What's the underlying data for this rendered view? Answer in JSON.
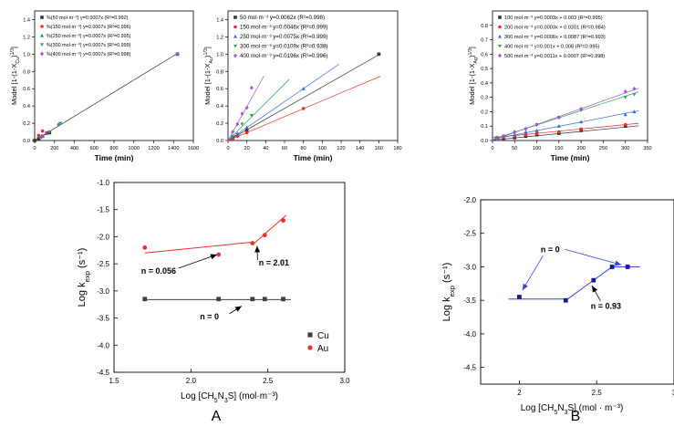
{
  "panel_labels": {
    "A": "A",
    "B": "B"
  },
  "chart_data": [
    {
      "id": "cu_kinetics",
      "type": "scatter",
      "ylabel": "Model [1-(1-X",
      "ylabel_sub": "Cu",
      "ylabel_tail": ")",
      "ylabel_sup": "1/3",
      "ylabel_end": "]",
      "xlabel": "Time (min)",
      "xlim": [
        0,
        1600
      ],
      "ylim": [
        0,
        1.5
      ],
      "xticks": [
        0,
        200,
        400,
        600,
        800,
        1000,
        1200,
        1400,
        1600
      ],
      "yticks": [
        0.0,
        0.2,
        0.4,
        0.6,
        0.8,
        1.0,
        1.2,
        1.4
      ],
      "legend_position": "top-left",
      "series": [
        {
          "name": "%(50 mol·m⁻³) y=0.0007x (R²=0.992)",
          "color": "#333333",
          "marker": "square",
          "slope": 0.0007,
          "intercept": 0,
          "line_xmax": 1440,
          "points": [
            [
              0,
              0
            ],
            [
              40,
              0.02
            ],
            [
              80,
              0.05
            ],
            [
              150,
              0.09
            ],
            [
              1440,
              1.0
            ]
          ]
        },
        {
          "name": "%(150 mol·m⁻³) y=0.0007x (R²=0.996)",
          "color": "#e8302c",
          "marker": "circle",
          "slope": 0.0007,
          "intercept": 0,
          "line_xmax": 0,
          "points": [
            [
              40,
              0.06
            ],
            [
              80,
              0.11
            ],
            [
              120,
              0.09
            ]
          ]
        },
        {
          "name": "%(250 mol·m⁻³) y=0.0007x (R²=0.995)",
          "color": "#3a67d8",
          "marker": "triangle-up",
          "slope": 0.0007,
          "intercept": 0,
          "line_xmax": 0,
          "points": [
            [
              60,
              0.04
            ],
            [
              120,
              0.08
            ],
            [
              240,
              0.19
            ]
          ]
        },
        {
          "name": "%(300 mol·m⁻³) y=0.0007x (R²=0.999)",
          "color": "#2ea04f",
          "marker": "triangle-down",
          "slope": 0.0007,
          "intercept": 0,
          "line_xmax": 0,
          "points": [
            [
              60,
              0.03
            ],
            [
              150,
              0.1
            ],
            [
              260,
              0.2
            ]
          ]
        },
        {
          "name": "%(400 mol·m⁻³) y=0.0007x (R²=0.998)",
          "color": "#9b59d0",
          "marker": "diamond",
          "slope": 0.0007,
          "intercept": 0,
          "line_xmax": 0,
          "points": [
            [
              80,
              0.05
            ],
            [
              1440,
              1.0
            ]
          ]
        }
      ]
    },
    {
      "id": "au_kinetics",
      "type": "scatter",
      "ylabel": "Model [1-(1-X",
      "ylabel_sub": "Au",
      "ylabel_tail": ")",
      "ylabel_sup": "1/3",
      "ylabel_end": "]",
      "xlabel": "Time (min)",
      "xlim": [
        0,
        180
      ],
      "ylim": [
        0,
        1.5
      ],
      "xticks": [
        0,
        20,
        40,
        60,
        80,
        100,
        120,
        140,
        160,
        180
      ],
      "yticks": [
        0.0,
        0.2,
        0.4,
        0.6,
        0.8,
        1.0,
        1.2,
        1.4
      ],
      "legend_position": "top-left",
      "series": [
        {
          "name": "50 mol·m⁻³ y=0.0062x (R²=0.998)",
          "color": "#333333",
          "marker": "square",
          "slope": 0.0062,
          "intercept": 0,
          "line_xmax": 162,
          "points": [
            [
              5,
              0.03
            ],
            [
              10,
              0.06
            ],
            [
              20,
              0.12
            ],
            [
              160,
              1.0
            ]
          ]
        },
        {
          "name": "150 mol·m⁻³ y=0.0046x (R²=0.999)",
          "color": "#e8302c",
          "marker": "circle",
          "slope": 0.0046,
          "intercept": 0,
          "line_xmax": 162,
          "points": [
            [
              5,
              0.02
            ],
            [
              10,
              0.05
            ],
            [
              20,
              0.09
            ],
            [
              80,
              0.37
            ]
          ]
        },
        {
          "name": "250 mol·m⁻³ y=0.0075x (R²=0.999)",
          "color": "#3a67d8",
          "marker": "triangle-up",
          "slope": 0.0075,
          "intercept": 0,
          "line_xmax": 118,
          "points": [
            [
              5,
              0.04
            ],
            [
              10,
              0.08
            ],
            [
              20,
              0.15
            ],
            [
              80,
              0.6
            ]
          ]
        },
        {
          "name": "300 mol·m⁻³ y=0.0109x (R²=0.938)",
          "color": "#2ea04f",
          "marker": "triangle-down",
          "slope": 0.0109,
          "intercept": 0,
          "line_xmax": 65,
          "points": [
            [
              5,
              0.05
            ],
            [
              15,
              0.19
            ],
            [
              25,
              0.29
            ]
          ]
        },
        {
          "name": "400 mol·m⁻³ y=0.0196x (R²=0.996)",
          "color": "#9b59d0",
          "marker": "diamond",
          "slope": 0.0196,
          "intercept": 0,
          "line_xmax": 38,
          "points": [
            [
              5,
              0.1
            ],
            [
              10,
              0.19
            ],
            [
              15,
              0.31
            ],
            [
              20,
              0.38
            ],
            [
              25,
              0.61
            ]
          ]
        }
      ]
    },
    {
      "id": "ag_kinetics",
      "type": "scatter",
      "ylabel": "Model [1-(1-X",
      "ylabel_sub": "Ag",
      "ylabel_tail": ")",
      "ylabel_sup": "1/3",
      "ylabel_end": "]",
      "xlabel": "Time (min)",
      "xlim": [
        0,
        350
      ],
      "ylim": [
        0,
        0.9
      ],
      "xticks": [
        0,
        50,
        100,
        150,
        200,
        250,
        300,
        350
      ],
      "yticks": [
        0.0,
        0.1,
        0.2,
        0.3,
        0.4,
        0.5,
        0.6,
        0.7,
        0.8
      ],
      "legend_position": "top-left",
      "series": [
        {
          "name": "100 mol·m⁻³ y=0.0003x + 0.003 (R²=0.995)",
          "color": "#333333",
          "marker": "square",
          "slope": 0.0003,
          "intercept": 0.003,
          "line_xmax": 330,
          "points": [
            [
              10,
              0.01
            ],
            [
              25,
              0.01
            ],
            [
              50,
              0.02
            ],
            [
              75,
              0.03
            ],
            [
              100,
              0.04
            ],
            [
              150,
              0.05
            ],
            [
              200,
              0.07
            ],
            [
              300,
              0.1
            ]
          ]
        },
        {
          "name": "200 mol·m⁻³ y=0.0003x + 0.0201 (R²=0.984)",
          "color": "#e8302c",
          "marker": "circle",
          "slope": 0.0003,
          "intercept": 0.0201,
          "line_xmax": 330,
          "points": [
            [
              10,
              0.02
            ],
            [
              25,
              0.02
            ],
            [
              50,
              0.03
            ],
            [
              75,
              0.04
            ],
            [
              100,
              0.05
            ],
            [
              150,
              0.06
            ],
            [
              200,
              0.08
            ],
            [
              300,
              0.11
            ]
          ]
        },
        {
          "name": "300 mol·m⁻³ y=0.0006x + 0.0087 (R²=0.993)",
          "color": "#3a67d8",
          "marker": "triangle-up",
          "slope": 0.0006,
          "intercept": 0.0087,
          "line_xmax": 330,
          "points": [
            [
              10,
              0.02
            ],
            [
              25,
              0.03
            ],
            [
              50,
              0.04
            ],
            [
              75,
              0.06
            ],
            [
              100,
              0.07
            ],
            [
              150,
              0.1
            ],
            [
              200,
              0.13
            ],
            [
              300,
              0.18
            ],
            [
              320,
              0.2
            ]
          ]
        },
        {
          "name": "400 mol·m⁻³ y=0.001x + 0.008 (R²=0.995)",
          "color": "#2ea04f",
          "marker": "triangle-down",
          "slope": 0.001,
          "intercept": 0.008,
          "line_xmax": 330,
          "points": [
            [
              10,
              0.02
            ],
            [
              25,
              0.03
            ],
            [
              50,
              0.05
            ],
            [
              75,
              0.08
            ],
            [
              100,
              0.11
            ],
            [
              150,
              0.16
            ],
            [
              200,
              0.21
            ],
            [
              300,
              0.3
            ],
            [
              320,
              0.32
            ]
          ]
        },
        {
          "name": "500 mol·m⁻³ y=0.0011x + 0.0007 (R²=0.998)",
          "color": "#9b59d0",
          "marker": "diamond",
          "slope": 0.0011,
          "intercept": 0.0007,
          "line_xmax": 330,
          "points": [
            [
              10,
              0.01
            ],
            [
              25,
              0.03
            ],
            [
              50,
              0.06
            ],
            [
              75,
              0.08
            ],
            [
              100,
              0.11
            ],
            [
              150,
              0.16
            ],
            [
              200,
              0.22
            ],
            [
              300,
              0.34
            ],
            [
              320,
              0.36
            ]
          ]
        }
      ]
    },
    {
      "id": "panel_A",
      "type": "scatter",
      "ylabel": "Log k",
      "ylabel_sub": "exp",
      "ylabel_tail": " (s⁻¹)",
      "xlabel": "Log [CH",
      "xlabel_parts": [
        "Log [CH",
        "5",
        "N",
        "3",
        "S] (mol·m⁻³)"
      ],
      "xlim": [
        1.5,
        3.0
      ],
      "ylim": [
        -4.5,
        -1.0
      ],
      "xticks": [
        1.5,
        2.0,
        2.5,
        3.0
      ],
      "xtick_labels": [
        "1.5",
        "2.0",
        "2.5",
        "3.0"
      ],
      "yticks": [
        -4.5,
        -4.0,
        -3.5,
        -3.0,
        -2.5,
        -2.0,
        -1.5,
        -1.0
      ],
      "ytick_labels": [
        "-4.5",
        "-4.0",
        "-3.5",
        "-3.0",
        "-2.5",
        "-2.0",
        "-1.5",
        "-1.0"
      ],
      "legend_position": "bottom-right",
      "series": [
        {
          "name": "Cu",
          "color": "#404040",
          "marker": "square",
          "points": [
            [
              1.7,
              -3.15
            ],
            [
              2.18,
              -3.15
            ],
            [
              2.4,
              -3.15
            ],
            [
              2.48,
              -3.15
            ],
            [
              2.6,
              -3.15
            ]
          ],
          "fits": [
            {
              "x": [
                1.7,
                2.65
              ],
              "y": [
                -3.16,
                -3.16
              ]
            }
          ]
        },
        {
          "name": "Au",
          "color": "#e8302c",
          "marker": "circle",
          "points": [
            [
              1.7,
              -2.2
            ],
            [
              2.18,
              -2.33
            ],
            [
              2.4,
              -2.12
            ],
            [
              2.48,
              -1.97
            ],
            [
              2.6,
              -1.7
            ]
          ],
          "fits": [
            {
              "x": [
                1.7,
                2.4
              ],
              "y": [
                -2.3,
                -2.1
              ]
            },
            {
              "x": [
                2.4,
                2.62
              ],
              "y": [
                -2.15,
                -1.6
              ]
            }
          ]
        }
      ],
      "annotations": [
        {
          "text": "n = 0.056",
          "x": 1.79,
          "y": -2.68,
          "arrow_to": [
            2.17,
            -2.33
          ]
        },
        {
          "text": "n = 2.01",
          "x": 2.54,
          "y": -2.53,
          "arrow_to": [
            2.43,
            -2.17
          ]
        },
        {
          "text": "n = 0",
          "x": 2.12,
          "y": -3.52,
          "arrow_to": [
            2.33,
            -3.28
          ]
        }
      ]
    },
    {
      "id": "panel_B",
      "type": "scatter",
      "ylabel": "Log k",
      "ylabel_sub": "exp",
      "ylabel_tail": " (s⁻¹)",
      "xlabel_parts": [
        "Log [CH",
        "5",
        "N",
        "3",
        "S] (mol · m⁻³)"
      ],
      "xlim": [
        1.75,
        3.0
      ],
      "ylim": [
        -4.75,
        -2.0
      ],
      "xticks": [
        2.0,
        2.5,
        3.0
      ],
      "xtick_labels": [
        "2",
        "2.5",
        "3"
      ],
      "yticks": [
        -4.5,
        -4.0,
        -3.5,
        -3.0,
        -2.5,
        -2.0
      ],
      "ytick_labels": [
        "-4.5",
        "-4.0",
        "-3.5",
        "-3.0",
        "-2.5",
        "-2.0"
      ],
      "series": [
        {
          "name": "",
          "color": "#1a1a8c",
          "marker": "square",
          "points": [
            [
              2.0,
              -3.45
            ],
            [
              2.3,
              -3.5
            ],
            [
              2.48,
              -3.2
            ],
            [
              2.6,
              -3.0
            ],
            [
              2.7,
              -3.0
            ]
          ],
          "fits": [
            {
              "x": [
                1.93,
                2.3
              ],
              "y": [
                -3.48,
                -3.48
              ]
            },
            {
              "x": [
                2.3,
                2.6
              ],
              "y": [
                -3.5,
                -3.0
              ]
            },
            {
              "x": [
                2.6,
                2.78
              ],
              "y": [
                -3.0,
                -3.0
              ]
            }
          ]
        }
      ],
      "annotations": [
        {
          "text": "n = 0",
          "x": 2.2,
          "y": -2.78,
          "arrows_to": [
            [
              2.02,
              -3.35
            ],
            [
              2.66,
              -2.97
            ]
          ]
        },
        {
          "text": "n = 0.93",
          "x": 2.56,
          "y": -3.63,
          "arrow_to": [
            2.47,
            -3.28
          ]
        }
      ],
      "line_color": "#3344dd"
    }
  ]
}
